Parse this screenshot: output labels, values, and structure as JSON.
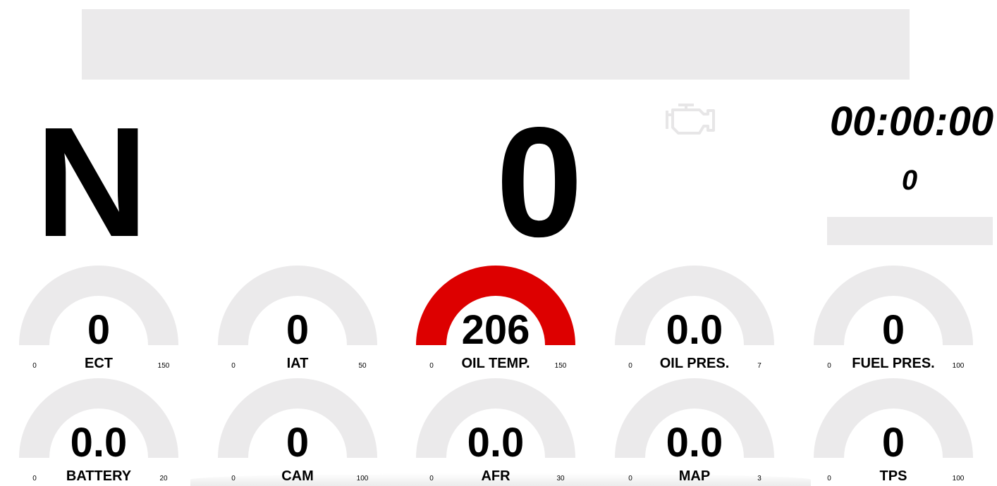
{
  "header": {
    "gear": "N",
    "speed": "0",
    "timer": "00:00:00",
    "lap": "0",
    "rpm_fraction": 0,
    "engine_icon": "check-engine-icon"
  },
  "colors": {
    "track": "#ebeaeb",
    "alert": "#dd0000",
    "text": "#000000"
  },
  "gauges": [
    {
      "label": "ECT",
      "value": "0",
      "min": "0",
      "max": "150",
      "fraction": 0,
      "alert": false
    },
    {
      "label": "IAT",
      "value": "0",
      "min": "0",
      "max": "50",
      "fraction": 0,
      "alert": false
    },
    {
      "label": "OIL TEMP.",
      "value": "206",
      "min": "0",
      "max": "150",
      "fraction": 1,
      "alert": true
    },
    {
      "label": "OIL PRES.",
      "value": "0.0",
      "min": "0",
      "max": "7",
      "fraction": 0,
      "alert": false
    },
    {
      "label": "FUEL PRES.",
      "value": "0",
      "min": "0",
      "max": "100",
      "fraction": 0,
      "alert": false
    },
    {
      "label": "BATTERY",
      "value": "0.0",
      "min": "0",
      "max": "20",
      "fraction": 0,
      "alert": false
    },
    {
      "label": "CAM",
      "value": "0",
      "min": "0",
      "max": "100",
      "fraction": 0,
      "alert": false
    },
    {
      "label": "AFR",
      "value": "0.0",
      "min": "0",
      "max": "30",
      "fraction": 0,
      "alert": false
    },
    {
      "label": "MAP",
      "value": "0.0",
      "min": "0",
      "max": "3",
      "fraction": 0,
      "alert": false
    },
    {
      "label": "TPS",
      "value": "0",
      "min": "0",
      "max": "100",
      "fraction": 0,
      "alert": false
    }
  ]
}
